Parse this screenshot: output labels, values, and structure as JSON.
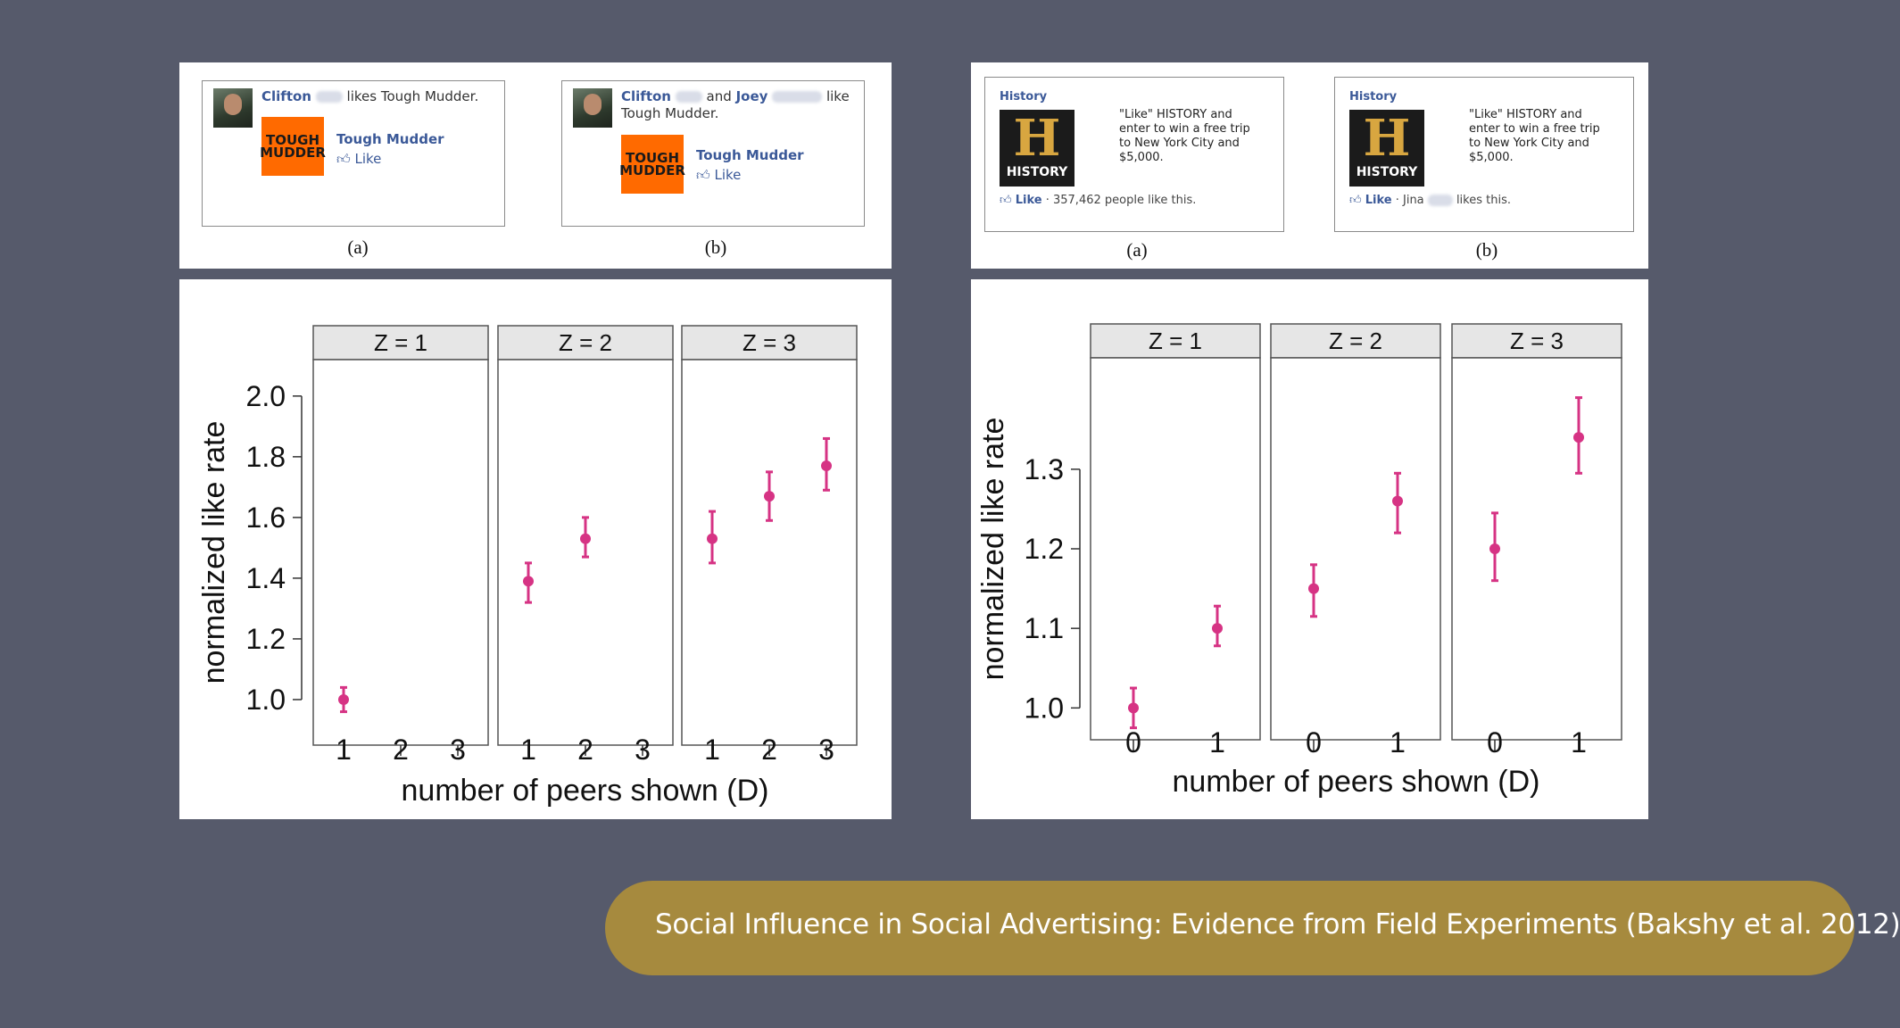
{
  "slide": {
    "background": "#565a6b",
    "title_pill_color": "#a68a3e",
    "title": "Social Influence in Social Advertising: Evidence from Field Experiments (Bakshy et al. 2012)"
  },
  "left_ads": {
    "a": {
      "name1": "Clifton",
      "verb": "likes Tough Mudder.",
      "page_name": "Tough Mudder",
      "like_label": "Like",
      "logo_text": "TOUGH MUDDER",
      "caption": "(a)"
    },
    "b": {
      "name1": "Clifton",
      "and": "and",
      "name2": "Joey",
      "verb": "like",
      "line2": "Tough Mudder.",
      "page_name": "Tough Mudder",
      "like_label": "Like",
      "logo_text": "TOUGH MUDDER",
      "caption": "(b)"
    }
  },
  "right_ads": {
    "a": {
      "sponsor": "History",
      "logo_letter": "H",
      "logo_word": "HISTORY",
      "body": "\"Like\" HISTORY and enter to win a free trip to New York City and $5,000.",
      "like_label": "Like",
      "social_text": "· 357,462 people like this.",
      "caption": "(a)"
    },
    "b": {
      "sponsor": "History",
      "logo_letter": "H",
      "logo_word": "HISTORY",
      "body": "\"Like\" HISTORY and enter to win a free trip to New York City and $5,000.",
      "like_label": "Like",
      "social_prefix": "· Jina",
      "social_suffix": "likes this.",
      "caption": "(b)"
    }
  },
  "chart_data": [
    {
      "type": "scatter",
      "ylabel": "normalized like rate",
      "xlabel": "number of peers shown (D)",
      "ylim": [
        0.85,
        2.12
      ],
      "yticks": [
        "1.0",
        "1.2",
        "1.4",
        "1.6",
        "1.8",
        "2.0"
      ],
      "point_color": "#d63384",
      "panels": [
        {
          "label": "Z = 1",
          "x_ticks": [
            "1",
            "2",
            "3"
          ],
          "points": [
            {
              "x": "1",
              "y": 1.0,
              "lo": 0.96,
              "hi": 1.04
            }
          ]
        },
        {
          "label": "Z = 2",
          "x_ticks": [
            "1",
            "2",
            "3"
          ],
          "points": [
            {
              "x": "1",
              "y": 1.39,
              "lo": 1.32,
              "hi": 1.45
            },
            {
              "x": "2",
              "y": 1.53,
              "lo": 1.47,
              "hi": 1.6
            }
          ]
        },
        {
          "label": "Z = 3",
          "x_ticks": [
            "1",
            "2",
            "3"
          ],
          "points": [
            {
              "x": "1",
              "y": 1.53,
              "lo": 1.45,
              "hi": 1.62
            },
            {
              "x": "2",
              "y": 1.67,
              "lo": 1.59,
              "hi": 1.75
            },
            {
              "x": "3",
              "y": 1.77,
              "lo": 1.69,
              "hi": 1.86
            }
          ]
        }
      ]
    },
    {
      "type": "scatter",
      "ylabel": "normalized like rate",
      "xlabel": "number of peers shown (D)",
      "ylim": [
        0.96,
        1.44
      ],
      "yticks": [
        "1.0",
        "1.1",
        "1.2",
        "1.3"
      ],
      "point_color": "#d63384",
      "panels": [
        {
          "label": "Z = 1",
          "x_ticks": [
            "0",
            "1"
          ],
          "points": [
            {
              "x": "0",
              "y": 1.0,
              "lo": 0.975,
              "hi": 1.025
            },
            {
              "x": "1",
              "y": 1.1,
              "lo": 1.078,
              "hi": 1.128
            }
          ]
        },
        {
          "label": "Z = 2",
          "x_ticks": [
            "0",
            "1"
          ],
          "points": [
            {
              "x": "0",
              "y": 1.15,
              "lo": 1.115,
              "hi": 1.18
            },
            {
              "x": "1",
              "y": 1.26,
              "lo": 1.22,
              "hi": 1.295
            }
          ]
        },
        {
          "label": "Z = 3",
          "x_ticks": [
            "0",
            "1"
          ],
          "points": [
            {
              "x": "0",
              "y": 1.2,
              "lo": 1.16,
              "hi": 1.245
            },
            {
              "x": "1",
              "y": 1.34,
              "lo": 1.295,
              "hi": 1.39
            }
          ]
        }
      ]
    }
  ]
}
